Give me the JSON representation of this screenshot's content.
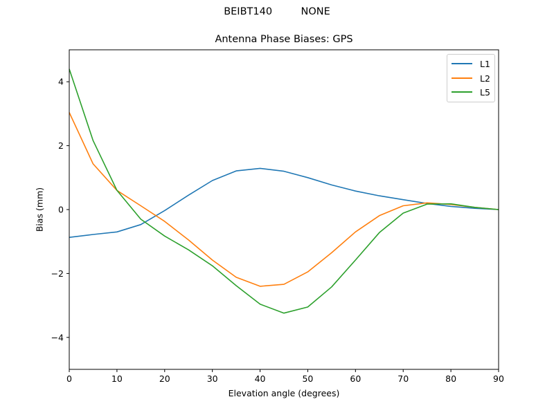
{
  "figure": {
    "suptitle": "BEIBT140         NONE",
    "title": "Antenna Phase Biases: GPS",
    "xlabel": "Elevation angle (degrees)",
    "ylabel": "Bias (mm)",
    "legend": [
      {
        "label": "L1",
        "color": "#1f77b4"
      },
      {
        "label": "L2",
        "color": "#ff7f0e"
      },
      {
        "label": "L5",
        "color": "#2ca02c"
      }
    ]
  },
  "chart_data": {
    "type": "line",
    "title": "Antenna Phase Biases: GPS",
    "suptitle": "BEIBT140         NONE",
    "xlabel": "Elevation angle (degrees)",
    "ylabel": "Bias (mm)",
    "xlim": [
      0,
      90
    ],
    "ylim": [
      -5,
      5
    ],
    "xticks": [
      0,
      10,
      20,
      30,
      40,
      50,
      60,
      70,
      80,
      90
    ],
    "yticks": [
      -4,
      -2,
      0,
      2,
      4
    ],
    "ytick_labels": [
      "−4",
      "−2",
      "0",
      "2",
      "4"
    ],
    "grid": false,
    "legend_position": "upper right",
    "x": [
      0,
      5,
      10,
      15,
      20,
      25,
      30,
      35,
      40,
      45,
      50,
      55,
      60,
      65,
      70,
      75,
      80,
      85,
      90
    ],
    "series": [
      {
        "name": "L1",
        "color": "#1f77b4",
        "values": [
          -0.87,
          -0.78,
          -0.7,
          -0.47,
          -0.03,
          0.45,
          0.91,
          1.21,
          1.29,
          1.2,
          1.0,
          0.77,
          0.58,
          0.43,
          0.31,
          0.19,
          0.1,
          0.04,
          0.0
        ]
      },
      {
        "name": "L2",
        "color": "#ff7f0e",
        "values": [
          3.04,
          1.43,
          0.6,
          0.12,
          -0.37,
          -0.95,
          -1.58,
          -2.12,
          -2.4,
          -2.34,
          -1.95,
          -1.35,
          -0.7,
          -0.19,
          0.12,
          0.21,
          0.16,
          0.07,
          0.0
        ]
      },
      {
        "name": "L5",
        "color": "#2ca02c",
        "values": [
          4.4,
          2.16,
          0.6,
          -0.3,
          -0.83,
          -1.26,
          -1.76,
          -2.38,
          -2.96,
          -3.24,
          -3.05,
          -2.42,
          -1.58,
          -0.72,
          -0.11,
          0.17,
          0.18,
          0.07,
          0.0
        ]
      }
    ]
  }
}
